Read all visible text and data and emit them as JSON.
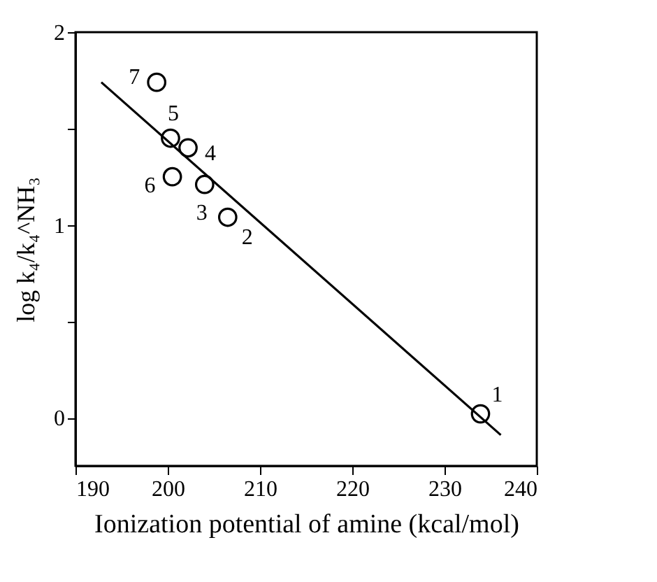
{
  "chart_data": {
    "type": "scatter",
    "xlabel": "Ionization potential of amine (kcal/mol)",
    "ylabel": "log k₄/k₄^NH₃",
    "xlim": [
      190,
      240
    ],
    "xticks": [
      190,
      200,
      210,
      220,
      230,
      240
    ],
    "ylim": [
      -0.25,
      2
    ],
    "yticks": [
      0,
      {
        "value": 0.5,
        "label": null
      },
      1,
      {
        "value": 1.5,
        "label": null
      },
      2
    ],
    "grid": false,
    "marker": "circle",
    "series": [
      {
        "color": "#000000",
        "x": [
          233.9,
          206.5,
          204.0,
          202.2,
          200.3,
          200.5,
          198.8
        ],
        "values": [
          0.02,
          1.04,
          1.21,
          1.4,
          1.45,
          1.25,
          1.74
        ]
      },
      {
        "type": "line",
        "color": "#000000",
        "marker": "none",
        "line_style": "solid",
        "x": [
          192.8,
          236.1
        ],
        "values": [
          1.74,
          -0.09
        ]
      }
    ],
    "annotations": [
      {
        "text": "1",
        "x": 233.9,
        "y": 0.02
      },
      {
        "text": "2",
        "x": 206.5,
        "y": 1.04
      },
      {
        "text": "3",
        "x": 204.0,
        "y": 1.21
      },
      {
        "text": "4",
        "x": 202.2,
        "y": 1.4
      },
      {
        "text": "5",
        "x": 200.3,
        "y": 1.45
      },
      {
        "text": "6",
        "x": 200.5,
        "y": 1.25
      },
      {
        "text": "7",
        "x": 198.8,
        "y": 1.74
      }
    ]
  }
}
